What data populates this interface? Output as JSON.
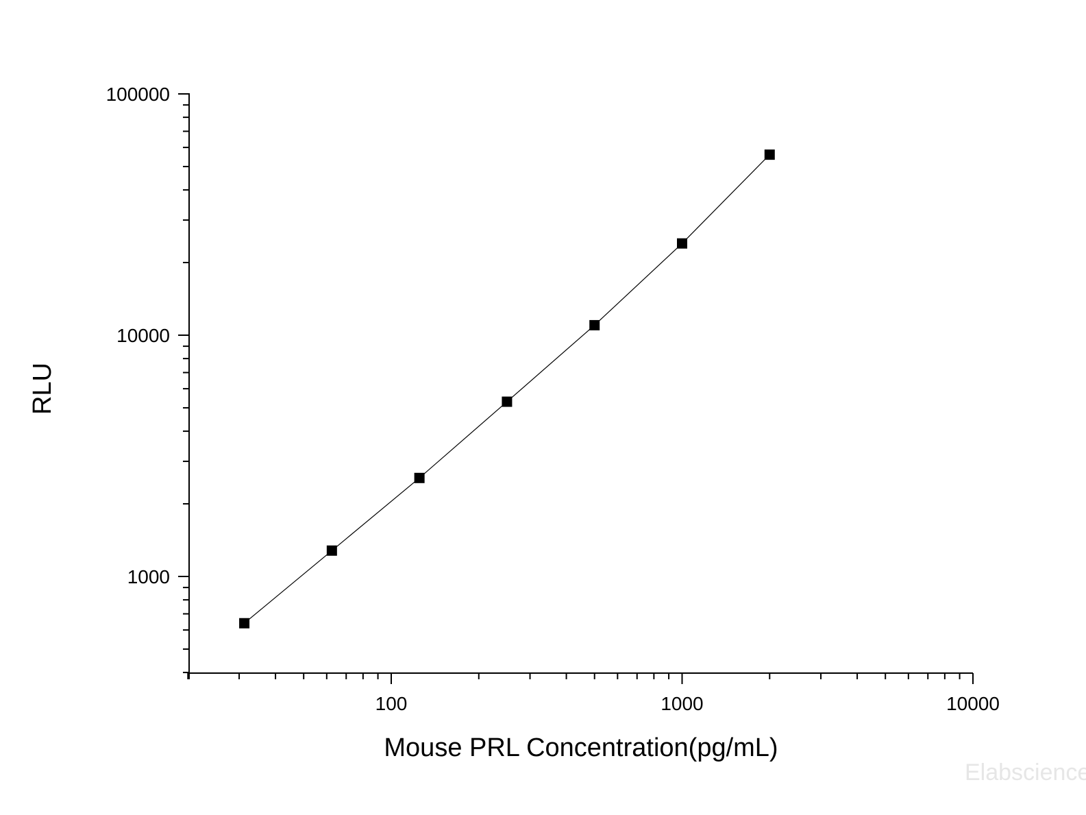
{
  "chart_data": {
    "type": "line",
    "title": "",
    "xlabel": "Mouse PRL Concentration(pg/mL)",
    "ylabel": "RLU",
    "x_scale": "log",
    "y_scale": "log",
    "xlim": [
      20,
      10000
    ],
    "ylim": [
      400,
      100000
    ],
    "x_ticks": [
      100,
      1000,
      10000
    ],
    "x_tick_labels": [
      "100",
      "1000",
      "10000"
    ],
    "y_ticks": [
      1000,
      10000,
      100000
    ],
    "y_tick_labels": [
      "1000",
      "10000",
      "100000"
    ],
    "grid": false,
    "legend": "none",
    "marker": "square",
    "line_color": "#000000",
    "marker_color": "#000000",
    "series": [
      {
        "x": [
          31.25,
          62.5,
          125,
          250,
          500,
          1000,
          2000
        ],
        "y": [
          640,
          1280,
          2560,
          5300,
          11000,
          24000,
          56000
        ]
      }
    ]
  },
  "watermark": "Elabscience"
}
